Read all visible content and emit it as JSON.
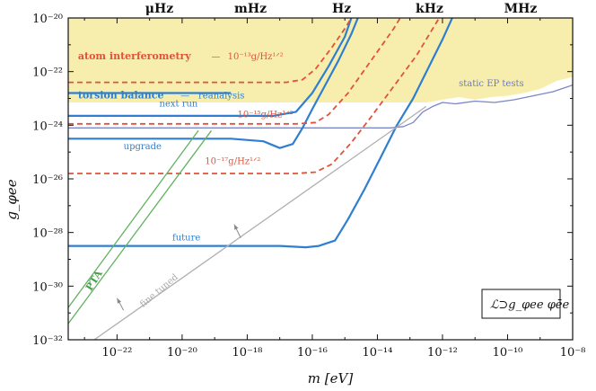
{
  "chart_data": {
    "type": "line",
    "title": "",
    "xlabel": "m [eV]",
    "ylabel": "g_φee",
    "xscale": "log",
    "yscale": "log",
    "xlim_log10": [
      -23.5,
      -8
    ],
    "ylim_log10": [
      -32,
      -20
    ],
    "x_ticks": [
      {
        "value": -22,
        "label": "10⁻²²"
      },
      {
        "value": -20,
        "label": "10⁻²⁰"
      },
      {
        "value": -18,
        "label": "10⁻¹⁸"
      },
      {
        "value": -16,
        "label": "10⁻¹⁶"
      },
      {
        "value": -14,
        "label": "10⁻¹⁴"
      },
      {
        "value": -12,
        "label": "10⁻¹²"
      },
      {
        "value": -10,
        "label": "10⁻¹⁰"
      },
      {
        "value": -8,
        "label": "10⁻⁸"
      }
    ],
    "y_ticks": [
      {
        "value": -20,
        "label": "10⁻²⁰"
      },
      {
        "value": -22,
        "label": "10⁻²²"
      },
      {
        "value": -24,
        "label": "10⁻²⁴"
      },
      {
        "value": -26,
        "label": "10⁻²⁶"
      },
      {
        "value": -28,
        "label": "10⁻²⁸"
      },
      {
        "value": -30,
        "label": "10⁻³⁰"
      },
      {
        "value": -32,
        "label": "10⁻³²"
      }
    ],
    "top_axis": [
      {
        "value": -20.7,
        "label": "μHz"
      },
      {
        "value": -17.9,
        "label": "mHz"
      },
      {
        "value": -15.1,
        "label": "Hz"
      },
      {
        "value": -12.4,
        "label": "kHz"
      },
      {
        "value": -9.6,
        "label": "MHz"
      }
    ],
    "excluded_region": {
      "name": "static EP tests excluded",
      "boundary": [
        [
          -23.5,
          -23.15
        ],
        [
          -12.5,
          -23.15
        ],
        [
          -12.0,
          -23.05
        ],
        [
          -11.5,
          -22.95
        ],
        [
          -11.0,
          -23.05
        ],
        [
          -10.5,
          -22.95
        ],
        [
          -10.0,
          -22.9
        ],
        [
          -9.5,
          -22.8
        ],
        [
          -9.0,
          -22.65
        ],
        [
          -8.5,
          -22.35
        ],
        [
          -8.0,
          -22.2
        ]
      ],
      "color": "#f7eeae"
    },
    "series": [
      {
        "name": "static EP tests",
        "color": "#7a86c6",
        "style": "solid",
        "width": 1.3,
        "points": [
          [
            -23.5,
            -24.1
          ],
          [
            -13.6,
            -24.1
          ],
          [
            -13.2,
            -24.05
          ],
          [
            -12.9,
            -23.9
          ],
          [
            -12.6,
            -23.5
          ],
          [
            -12.3,
            -23.3
          ],
          [
            -12.0,
            -23.15
          ],
          [
            -11.6,
            -23.2
          ],
          [
            -11.0,
            -23.1
          ],
          [
            -10.4,
            -23.15
          ],
          [
            -9.8,
            -23.05
          ],
          [
            -9.2,
            -22.9
          ],
          [
            -8.6,
            -22.75
          ],
          [
            -8.0,
            -22.5
          ]
        ]
      },
      {
        "name": "torsion balance reanalysis",
        "color": "#2f7fd0",
        "style": "solid",
        "width": 2.2,
        "points": [
          [
            -23.5,
            -22.8
          ],
          [
            -18.5,
            -22.8
          ]
        ]
      },
      {
        "name": "torsion balance next run",
        "color": "#2f7fd0",
        "style": "solid",
        "width": 2.2,
        "points": [
          [
            -23.5,
            -23.65
          ],
          [
            -17.2,
            -23.65
          ],
          [
            -16.5,
            -23.5
          ],
          [
            -16.0,
            -22.8
          ],
          [
            -15.5,
            -21.8
          ],
          [
            -15.0,
            -20.7
          ],
          [
            -14.8,
            -20.0
          ]
        ]
      },
      {
        "name": "torsion balance upgrade",
        "color": "#2f7fd0",
        "style": "solid",
        "width": 2.2,
        "points": [
          [
            -23.5,
            -24.5
          ],
          [
            -18.5,
            -24.5
          ],
          [
            -17.5,
            -24.6
          ],
          [
            -17.0,
            -24.85
          ],
          [
            -16.6,
            -24.7
          ],
          [
            -16.3,
            -24.1
          ],
          [
            -16.0,
            -23.4
          ],
          [
            -15.6,
            -22.5
          ],
          [
            -15.2,
            -21.6
          ],
          [
            -14.8,
            -20.6
          ],
          [
            -14.6,
            -20.0
          ]
        ]
      },
      {
        "name": "torsion balance future",
        "color": "#2f7fd0",
        "style": "solid",
        "width": 2.2,
        "points": [
          [
            -23.5,
            -28.5
          ],
          [
            -17.0,
            -28.5
          ],
          [
            -16.2,
            -28.55
          ],
          [
            -15.8,
            -28.5
          ],
          [
            -15.3,
            -28.3
          ],
          [
            -14.9,
            -27.5
          ],
          [
            -14.4,
            -26.4
          ],
          [
            -13.9,
            -25.2
          ],
          [
            -13.4,
            -24.0
          ],
          [
            -12.9,
            -23.0
          ],
          [
            -12.0,
            -20.8
          ],
          [
            -11.7,
            -20.0
          ]
        ]
      },
      {
        "name": "atom interferometry 1e-13",
        "color": "#e0533a",
        "style": "dashed",
        "width": 1.8,
        "points": [
          [
            -23.5,
            -22.4
          ],
          [
            -16.8,
            -22.4
          ],
          [
            -16.3,
            -22.3
          ],
          [
            -15.9,
            -21.9
          ],
          [
            -15.4,
            -21.1
          ],
          [
            -15.0,
            -20.4
          ],
          [
            -14.8,
            -20.0
          ]
        ]
      },
      {
        "name": "atom interferometry 1e-15",
        "color": "#e0533a",
        "style": "dashed",
        "width": 1.8,
        "points": [
          [
            -23.5,
            -23.95
          ],
          [
            -16.5,
            -23.95
          ],
          [
            -15.9,
            -23.9
          ],
          [
            -15.5,
            -23.6
          ],
          [
            -14.9,
            -22.8
          ],
          [
            -14.2,
            -21.6
          ],
          [
            -13.5,
            -20.4
          ],
          [
            -13.3,
            -20.0
          ]
        ]
      },
      {
        "name": "atom interferometry 1e-17",
        "color": "#e0533a",
        "style": "dashed",
        "width": 1.8,
        "points": [
          [
            -23.5,
            -25.8
          ],
          [
            -16.5,
            -25.8
          ],
          [
            -15.9,
            -25.75
          ],
          [
            -15.4,
            -25.45
          ],
          [
            -14.8,
            -24.65
          ],
          [
            -14.2,
            -23.7
          ],
          [
            -13.5,
            -22.55
          ],
          [
            -12.8,
            -21.4
          ],
          [
            -12.3,
            -20.4
          ],
          [
            -12.1,
            -20.0
          ]
        ]
      },
      {
        "name": "PTA upper",
        "color": "#5fb35f",
        "style": "solid",
        "width": 1.3,
        "points": [
          [
            -23.5,
            -30.8
          ],
          [
            -19.5,
            -24.2
          ]
        ]
      },
      {
        "name": "PTA lower",
        "color": "#5fb35f",
        "style": "solid",
        "width": 1.3,
        "points": [
          [
            -23.5,
            -31.4
          ],
          [
            -19.1,
            -24.2
          ]
        ]
      },
      {
        "name": "fine tuned",
        "color": "#b0b0b0",
        "style": "solid",
        "width": 1.3,
        "points": [
          [
            -22.7,
            -32.0
          ],
          [
            -12.5,
            -23.3
          ]
        ]
      }
    ],
    "arrows": [
      {
        "from": [
          -21.8,
          -30.9
        ],
        "to": [
          -22.0,
          -30.45
        ],
        "color": "#888888"
      },
      {
        "from": [
          -18.2,
          -28.2
        ],
        "to": [
          -18.4,
          -27.7
        ],
        "color": "#888888"
      }
    ],
    "annotations": [
      {
        "id": "atom",
        "text": "atom interferometry",
        "value": [
          -23.2,
          -21.55
        ],
        "color": "#e0533a",
        "bold": true
      },
      {
        "id": "atom-dash",
        "text": "—",
        "value": [
          -19.1,
          -21.55
        ],
        "color": "#e0533a"
      },
      {
        "id": "atom-13",
        "text": "10⁻¹³g/Hz¹ᐟ²",
        "value": [
          -18.6,
          -21.55
        ],
        "color": "#e0533a"
      },
      {
        "id": "torsion",
        "text": "torsion balance",
        "value": [
          -23.2,
          -23.0
        ],
        "color": "#2f7fd0",
        "bold": true
      },
      {
        "id": "torsion-dash",
        "text": "—",
        "value": [
          -20.05,
          -23.0
        ],
        "color": "#2f7fd0"
      },
      {
        "id": "reanalysis",
        "text": "reanalysis",
        "value": [
          -19.5,
          -23.0
        ],
        "color": "#2f7fd0"
      },
      {
        "id": "next",
        "text": "next run",
        "value": [
          -20.7,
          -23.3
        ],
        "color": "#2f7fd0"
      },
      {
        "id": "atom-15",
        "text": "10⁻¹⁵g/Hz¹ᐟ²",
        "value": [
          -18.3,
          -23.7
        ],
        "color": "#e0533a"
      },
      {
        "id": "upgrade",
        "text": "upgrade",
        "value": [
          -21.8,
          -24.9
        ],
        "color": "#2f7fd0"
      },
      {
        "id": "atom-17",
        "text": "10⁻¹⁷g/Hz¹ᐟ²",
        "value": [
          -19.3,
          -25.45
        ],
        "color": "#e0533a"
      },
      {
        "id": "static",
        "text": "static EP tests",
        "value": [
          -11.5,
          -22.55
        ],
        "color": "#6f7bb8"
      },
      {
        "id": "future",
        "text": "future",
        "value": [
          -20.3,
          -28.3
        ],
        "color": "#2f7fd0"
      },
      {
        "id": "fine",
        "text": "fine tuned",
        "value": [
          -21.2,
          -30.8
        ],
        "color": "#aaaaaa",
        "rotate": -40
      },
      {
        "id": "pta",
        "text": "PTA",
        "value": [
          -22.8,
          -30.2
        ],
        "color": "#4a9e4a",
        "rotate": -58,
        "bold": true
      }
    ],
    "legend": {
      "text": "ℒ⊃g_φee φēe",
      "position": "bottom-right"
    }
  }
}
